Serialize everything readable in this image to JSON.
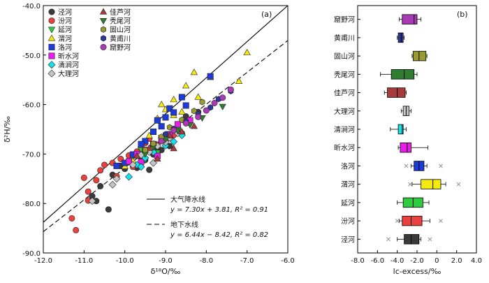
{
  "chart_data": [
    {
      "type": "scatter",
      "panel_label": "(a)",
      "xlabel": "δ¹⁸O/‰",
      "ylabel": "δ²H/‰",
      "xlim": [
        -12.0,
        -6.0
      ],
      "ylim": [
        -90.0,
        -40.0
      ],
      "x_ticks": [
        "-12.0",
        "-11.0",
        "-10.0",
        "-9.0",
        "-8.0",
        "-7.0",
        "-6.0"
      ],
      "y_ticks": [
        "-40.0",
        "-50.0",
        "-60.0",
        "-70.0",
        "-80.0",
        "-90.0"
      ],
      "legend_position": "top-left",
      "lines": [
        {
          "name": "大气降水线",
          "equation": "y = 7.30x + 3.81, R² = 0.91",
          "slope": 7.3,
          "intercept": 3.81,
          "style": "solid"
        },
        {
          "name": "地下水线",
          "equation": "y = 6.44x − 8.42, R² = 0.82",
          "slope": 6.44,
          "intercept": -8.42,
          "style": "dashed"
        }
      ],
      "series": [
        {
          "name": "泾河",
          "marker": "circle",
          "color": "#3a3a3a",
          "points": [
            [
              -10.4,
              -81.2
            ],
            [
              -10.7,
              -79.5
            ],
            [
              -10.6,
              -76.5
            ],
            [
              -10.3,
              -74.2
            ],
            [
              -10.1,
              -72.4
            ],
            [
              -9.9,
              -71.4
            ],
            [
              -9.7,
              -72.8
            ],
            [
              -9.5,
              -71.2
            ],
            [
              -9.3,
              -70.1
            ],
            [
              -9.1,
              -69.2
            ],
            [
              -8.9,
              -68.4
            ],
            [
              -8.6,
              -65.8
            ],
            [
              -8.4,
              -63.5
            ],
            [
              -8.2,
              -61.5
            ],
            [
              -8.5,
              -62.4
            ],
            [
              -8.9,
              -66.5
            ],
            [
              -9.2,
              -68.8
            ],
            [
              -9.6,
              -70.6
            ],
            [
              -10.0,
              -73.0
            ],
            [
              -9.4,
              -73.2
            ],
            [
              -10.8,
              -78.5
            ]
          ]
        },
        {
          "name": "汾河",
          "marker": "circle",
          "color": "#e8413e",
          "points": [
            [
              -11.3,
              -83.0
            ],
            [
              -11.2,
              -85.4
            ],
            [
              -11.0,
              -74.8
            ],
            [
              -10.9,
              -79.4
            ],
            [
              -10.9,
              -77.6
            ],
            [
              -10.7,
              -75.3
            ],
            [
              -10.6,
              -73.3
            ],
            [
              -10.5,
              -72.2
            ],
            [
              -10.3,
              -71.8
            ],
            [
              -10.1,
              -71.0
            ],
            [
              -9.9,
              -70.3
            ],
            [
              -9.7,
              -69.5
            ],
            [
              -9.5,
              -67.8
            ],
            [
              -9.4,
              -66.9
            ],
            [
              -9.2,
              -68.1
            ],
            [
              -9.0,
              -67.4
            ],
            [
              -8.8,
              -66.2
            ],
            [
              -8.7,
              -64.8
            ],
            [
              -8.6,
              -66.1
            ],
            [
              -9.8,
              -72.6
            ],
            [
              -10.2,
              -74.5
            ]
          ]
        },
        {
          "name": "延河",
          "marker": "triangle-down",
          "color": "#2ecc40",
          "points": [
            [
              -9.8,
              -70.6
            ],
            [
              -9.6,
              -69.1
            ],
            [
              -9.3,
              -68.4
            ],
            [
              -9.1,
              -67.2
            ],
            [
              -8.9,
              -65.9
            ],
            [
              -8.7,
              -65.1
            ],
            [
              -9.5,
              -71.2
            ],
            [
              -9.2,
              -69.7
            ]
          ]
        },
        {
          "name": "渭河",
          "marker": "triangle-up",
          "color": "#f5ea0e",
          "points": [
            [
              -7.0,
              -49.5
            ],
            [
              -7.2,
              -55.3
            ],
            [
              -7.9,
              -54.5
            ],
            [
              -8.3,
              -53.5
            ],
            [
              -8.5,
              -56.2
            ],
            [
              -8.8,
              -59.0
            ],
            [
              -9.0,
              -61.0
            ],
            [
              -9.1,
              -60.0
            ],
            [
              -9.2,
              -62.8
            ],
            [
              -9.4,
              -66.3
            ],
            [
              -9.6,
              -68.2
            ],
            [
              -9.8,
              -71.4
            ],
            [
              -10.0,
              -72.5
            ],
            [
              -8.6,
              -61.5
            ],
            [
              -8.2,
              -58.5
            ],
            [
              -8.8,
              -62.2
            ]
          ]
        },
        {
          "name": "洛河",
          "marker": "square",
          "color": "#1e3adb",
          "points": [
            [
              -7.9,
              -54.3
            ],
            [
              -8.6,
              -58.5
            ],
            [
              -8.9,
              -60.8
            ],
            [
              -9.0,
              -62.6
            ],
            [
              -9.1,
              -64.4
            ],
            [
              -9.2,
              -63.2
            ],
            [
              -9.3,
              -65.5
            ],
            [
              -9.5,
              -67.4
            ],
            [
              -9.6,
              -68.0
            ],
            [
              -9.8,
              -70.1
            ],
            [
              -10.0,
              -71.8
            ],
            [
              -10.2,
              -72.4
            ],
            [
              -8.8,
              -61.6
            ],
            [
              -8.5,
              -60.2
            ]
          ]
        },
        {
          "name": "昕水河",
          "marker": "square",
          "color": "#e81fe8",
          "points": [
            [
              -9.9,
              -71.5
            ],
            [
              -9.7,
              -70.0
            ],
            [
              -9.5,
              -69.2
            ],
            [
              -9.3,
              -68.0
            ],
            [
              -9.1,
              -66.8
            ],
            [
              -8.9,
              -66.1
            ],
            [
              -8.7,
              -64.0
            ],
            [
              -9.6,
              -71.6
            ],
            [
              -9.2,
              -70.4
            ],
            [
              -8.4,
              -63.2
            ]
          ]
        },
        {
          "name": "清涧河",
          "marker": "diamond",
          "color": "#15e0ec",
          "points": [
            [
              -9.9,
              -74.6
            ],
            [
              -9.7,
              -72.2
            ],
            [
              -9.5,
              -70.8
            ],
            [
              -9.3,
              -69.6
            ],
            [
              -9.0,
              -68.3
            ],
            [
              -8.8,
              -67.5
            ],
            [
              -8.6,
              -66.2
            ],
            [
              -9.6,
              -72.6
            ]
          ]
        },
        {
          "name": "大理河",
          "marker": "diamond",
          "color": "#c4c4c4",
          "points": [
            [
              -10.8,
              -79.5
            ],
            [
              -10.2,
              -75.0
            ],
            [
              -9.8,
              -72.2
            ],
            [
              -9.6,
              -70.2
            ],
            [
              -9.4,
              -69.6
            ],
            [
              -9.2,
              -68.4
            ],
            [
              -8.9,
              -66.7
            ],
            [
              -8.7,
              -65.8
            ],
            [
              -9.0,
              -67.6
            ],
            [
              -10.3,
              -76.2
            ],
            [
              -9.3,
              -71.8
            ]
          ]
        },
        {
          "name": "佳芦河",
          "marker": "triangle-up",
          "color": "#a93a3a",
          "points": [
            [
              -9.7,
              -70.4
            ],
            [
              -9.4,
              -68.8
            ],
            [
              -9.1,
              -67.3
            ],
            [
              -8.9,
              -66.3
            ],
            [
              -8.6,
              -65.5
            ],
            [
              -8.3,
              -64.4
            ],
            [
              -9.2,
              -71.0
            ],
            [
              -8.8,
              -68.9
            ]
          ]
        },
        {
          "name": "秃尾河",
          "marker": "triangle-down",
          "color": "#2f7d2f",
          "points": [
            [
              -7.6,
              -60.4
            ],
            [
              -8.1,
              -62.7
            ],
            [
              -8.4,
              -64.1
            ],
            [
              -8.7,
              -65.3
            ],
            [
              -9.0,
              -67.0
            ],
            [
              -9.3,
              -68.6
            ],
            [
              -9.5,
              -70.0
            ]
          ]
        },
        {
          "name": "固山河",
          "marker": "hexagon",
          "color": "#9a9a30",
          "points": [
            [
              -8.1,
              -59.5
            ],
            [
              -8.3,
              -61.3
            ],
            [
              -8.6,
              -63.1
            ],
            [
              -8.9,
              -64.6
            ],
            [
              -9.1,
              -66.5
            ],
            [
              -9.3,
              -67.9
            ],
            [
              -9.5,
              -69.2
            ]
          ]
        },
        {
          "name": "黄甫川",
          "marker": "hexagon",
          "color": "#2b3a9a",
          "points": [
            [
              -7.4,
              -57.3
            ],
            [
              -7.7,
              -58.9
            ],
            [
              -7.9,
              -60.6
            ],
            [
              -8.2,
              -61.9
            ],
            [
              -8.5,
              -63.4
            ],
            [
              -8.8,
              -64.9
            ],
            [
              -9.0,
              -66.0
            ]
          ]
        },
        {
          "name": "窟野河",
          "marker": "circle",
          "color": "#a93ab5",
          "points": [
            [
              -7.4,
              -57.0
            ],
            [
              -7.6,
              -58.6
            ],
            [
              -7.8,
              -59.7
            ],
            [
              -8.0,
              -61.2
            ],
            [
              -8.2,
              -62.5
            ],
            [
              -8.5,
              -63.8
            ],
            [
              -8.8,
              -65.2
            ],
            [
              -9.1,
              -67.4
            ]
          ]
        }
      ]
    },
    {
      "type": "box",
      "panel_label": "(b)",
      "xlabel": "lc-excess/‰",
      "xlim": [
        -8.0,
        4.0
      ],
      "x_ticks": [
        "-8.0",
        "-6.0",
        "-4.0",
        "-2.0",
        "0",
        "2.0",
        "4.0"
      ],
      "boxes": [
        {
          "name": "窟野河",
          "color": "#a93ab5",
          "whisker_low": -3.8,
          "q1": -3.5,
          "median": -2.3,
          "q3": -2.0,
          "whisker_high": -1.6,
          "outliers": []
        },
        {
          "name": "黄甫川",
          "color": "#2b3a9a",
          "whisker_low": -4.0,
          "q1": -3.9,
          "median": -3.6,
          "q3": -3.4,
          "whisker_high": -3.3,
          "outliers": []
        },
        {
          "name": "固山河",
          "color": "#9a9a30",
          "whisker_low": -2.5,
          "q1": -2.4,
          "median": -1.8,
          "q3": -1.1,
          "whisker_high": -1.0,
          "outliers": []
        },
        {
          "name": "秃尾河",
          "color": "#2f7d2f",
          "whisker_low": -5.7,
          "q1": -4.6,
          "median": -3.3,
          "q3": -2.3,
          "whisker_high": -2.0,
          "outliers": []
        },
        {
          "name": "佳芦河",
          "color": "#a93a3a",
          "whisker_low": -5.3,
          "q1": -5.0,
          "median": -4.0,
          "q3": -3.2,
          "whisker_high": -3.1,
          "outliers": []
        },
        {
          "name": "大理河",
          "color": "#c4c4c4",
          "whisker_low": -3.6,
          "q1": -3.4,
          "median": -3.1,
          "q3": -2.8,
          "whisker_high": -2.6,
          "outliers": []
        },
        {
          "name": "清涧河",
          "color": "#15e0ec",
          "whisker_low": -4.7,
          "q1": -3.9,
          "median": -3.5,
          "q3": -3.4,
          "whisker_high": -3.1,
          "outliers": []
        },
        {
          "name": "昕水河",
          "color": "#e81fe8",
          "whisker_low": -3.9,
          "q1": -3.7,
          "median": -3.0,
          "q3": -2.6,
          "whisker_high": -0.9,
          "outliers": []
        },
        {
          "name": "洛河",
          "color": "#1e3adb",
          "whisker_low": -2.6,
          "q1": -2.3,
          "median": -1.8,
          "q3": -1.3,
          "whisker_high": -1.0,
          "outliers": [
            -3.1,
            0.4
          ]
        },
        {
          "name": "渭河",
          "color": "#f5ea0e",
          "whisker_low": -2.5,
          "q1": -1.6,
          "median": -0.4,
          "q3": 0.4,
          "whisker_high": 0.9,
          "outliers": [
            -2.7,
            2.2
          ]
        },
        {
          "name": "延河",
          "color": "#2ecc40",
          "whisker_low": -4.0,
          "q1": -3.4,
          "median": -2.4,
          "q3": -1.4,
          "whisker_high": -0.8,
          "outliers": []
        },
        {
          "name": "汾河",
          "color": "#e8413e",
          "whisker_low": -3.8,
          "q1": -3.5,
          "median": -2.6,
          "q3": -1.5,
          "whisker_high": -0.7,
          "outliers": [
            -4.0,
            0.4
          ]
        },
        {
          "name": "泾河",
          "color": "#3a3a3a",
          "whisker_low": -4.0,
          "q1": -3.3,
          "median": -2.6,
          "q3": -1.8,
          "whisker_high": -1.6,
          "outliers": [
            -4.9,
            -0.7
          ]
        }
      ]
    }
  ]
}
